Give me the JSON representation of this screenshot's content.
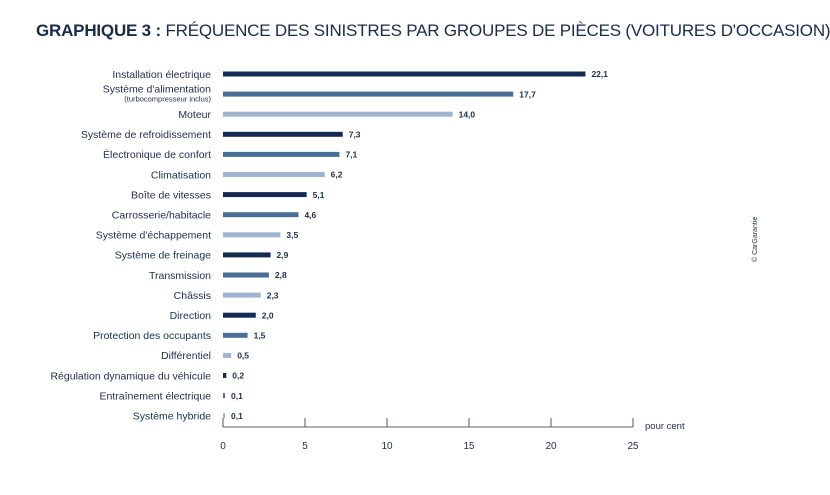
{
  "title": {
    "label": "GRAPHIQUE 3 :",
    "text": "FRÉQUENCE DES SINISTRES PAR GROUPES DE PIÈCES (VOITURES D'OCCASION)"
  },
  "credit": "© CarGarantie",
  "colors": {
    "dark": "#142c53",
    "medium": "#4a6f96",
    "light": "#9fb4d0",
    "axis": "#1f2d4a"
  },
  "chart_data": {
    "type": "bar",
    "orientation": "horizontal",
    "title": "GRAPHIQUE 3 : FRÉQUENCE DES SINISTRES PAR GROUPES DE PIÈCES (VOITURES D'OCCASION)",
    "xlabel": "pour cent",
    "xlim": [
      0,
      25
    ],
    "xticks": [
      0,
      5,
      10,
      15,
      20,
      25
    ],
    "grid": false,
    "categories": [
      {
        "label": "Installation électrique",
        "sublabel": "",
        "value": 22.1,
        "value_label": "22,1",
        "shade": "dark"
      },
      {
        "label": "Système d'alimentation",
        "sublabel": "(turbocompresseur inclus)",
        "value": 17.7,
        "value_label": "17,7",
        "shade": "medium"
      },
      {
        "label": "Moteur",
        "sublabel": "",
        "value": 14.0,
        "value_label": "14,0",
        "shade": "light"
      },
      {
        "label": "Système de refroidissement",
        "sublabel": "",
        "value": 7.3,
        "value_label": "7,3",
        "shade": "dark"
      },
      {
        "label": "Électronique de confort",
        "sublabel": "",
        "value": 7.1,
        "value_label": "7,1",
        "shade": "medium"
      },
      {
        "label": "Climatisation",
        "sublabel": "",
        "value": 6.2,
        "value_label": "6,2",
        "shade": "light"
      },
      {
        "label": "Boîte de vitesses",
        "sublabel": "",
        "value": 5.1,
        "value_label": "5,1",
        "shade": "dark"
      },
      {
        "label": "Carrosserie/habitacle",
        "sublabel": "",
        "value": 4.6,
        "value_label": "4,6",
        "shade": "medium"
      },
      {
        "label": "Système d'échappement",
        "sublabel": "",
        "value": 3.5,
        "value_label": "3,5",
        "shade": "light"
      },
      {
        "label": "Système de freinage",
        "sublabel": "",
        "value": 2.9,
        "value_label": "2,9",
        "shade": "dark"
      },
      {
        "label": "Transmission",
        "sublabel": "",
        "value": 2.8,
        "value_label": "2,8",
        "shade": "medium"
      },
      {
        "label": "Châssis",
        "sublabel": "",
        "value": 2.3,
        "value_label": "2,3",
        "shade": "light"
      },
      {
        "label": "Direction",
        "sublabel": "",
        "value": 2.0,
        "value_label": "2,0",
        "shade": "dark"
      },
      {
        "label": "Protection des occupants",
        "sublabel": "",
        "value": 1.5,
        "value_label": "1,5",
        "shade": "medium"
      },
      {
        "label": "Différentiel",
        "sublabel": "",
        "value": 0.5,
        "value_label": "0,5",
        "shade": "light"
      },
      {
        "label": "Régulation dynamique du véhicule",
        "sublabel": "",
        "value": 0.2,
        "value_label": "0,2",
        "shade": "dark"
      },
      {
        "label": "Entraînement électrique",
        "sublabel": "",
        "value": 0.1,
        "value_label": "0,1",
        "shade": "medium"
      },
      {
        "label": "Système hybride",
        "sublabel": "",
        "value": 0.1,
        "value_label": "0,1",
        "shade": "light"
      }
    ]
  }
}
